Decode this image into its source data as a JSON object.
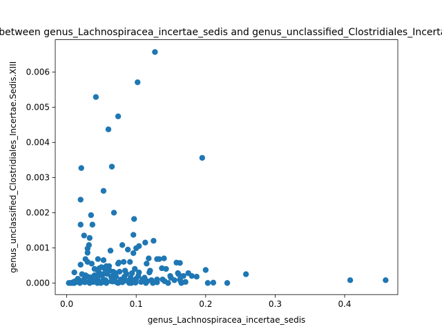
{
  "chart_data": {
    "type": "scatter",
    "title": "Correlation between genus_Lachnospiracea_incertae_sedis and genus_unclassified_Clostridiales_Incertae.Sedis.XIII",
    "xlabel": "genus_Lachnospiracea_incertae_sedis",
    "ylabel": "genus_unclassified_Clostridiales_Incertae.Sedis.XIII",
    "xlim": [
      -0.0165,
      0.4765
    ],
    "ylim": [
      -0.00033,
      0.00692
    ],
    "x_ticks": [
      "0.0",
      "0.1",
      "0.2",
      "0.3",
      "0.4"
    ],
    "x_tick_values": [
      0.0,
      0.1,
      0.2,
      0.3,
      0.4
    ],
    "y_ticks": [
      "0.000",
      "0.001",
      "0.002",
      "0.003",
      "0.004",
      "0.005",
      "0.006"
    ],
    "y_tick_values": [
      0.0,
      0.001,
      0.002,
      0.003,
      0.004,
      0.005,
      0.006
    ],
    "grid": false,
    "marker_color": "#1f77b4",
    "x": [
      0.127,
      0.102,
      0.042,
      0.074,
      0.06,
      0.195,
      0.021,
      0.065,
      0.053,
      0.02,
      0.068,
      0.035,
      0.097,
      0.02,
      0.037,
      0.025,
      0.033,
      0.096,
      0.125,
      0.113,
      0.032,
      0.104,
      0.03,
      0.08,
      0.1,
      0.03,
      0.063,
      0.088,
      0.096,
      0.118,
      0.14,
      0.082,
      0.158,
      0.074,
      0.011,
      0.03,
      0.027,
      0.045,
      0.053,
      0.075,
      0.133,
      0.163,
      0.04,
      0.115,
      0.13,
      0.02,
      0.061,
      0.091,
      0.143,
      0.16,
      0.175,
      0.2,
      0.098,
      0.03,
      0.137,
      0.12,
      0.104,
      0.094,
      0.084,
      0.067,
      0.05,
      0.045,
      0.028,
      0.044,
      0.035,
      0.053,
      0.071,
      0.078,
      0.149,
      0.138,
      0.18,
      0.168,
      0.119,
      0.15,
      0.161,
      0.187,
      0.163,
      0.164,
      0.155,
      0.141,
      0.13,
      0.112,
      0.1,
      0.078,
      0.045,
      0.037,
      0.005,
      0.008,
      0.012,
      0.018,
      0.025,
      0.032,
      0.041,
      0.049,
      0.056,
      0.064,
      0.072,
      0.081,
      0.09,
      0.095,
      0.107,
      0.116,
      0.124,
      0.027,
      0.009,
      0.016,
      0.022,
      0.04,
      0.058,
      0.069,
      0.086,
      0.103,
      0.011,
      0.034,
      0.047,
      0.059,
      0.083,
      0.047,
      0.052,
      0.057,
      0.062,
      0.068,
      0.043,
      0.036,
      0.055,
      0.049,
      0.064,
      0.07,
      0.076,
      0.092,
      0.109,
      0.122,
      0.003,
      0.014,
      0.019,
      0.026,
      0.033,
      0.038,
      0.044,
      0.051,
      0.057,
      0.066,
      0.074,
      0.08,
      0.087,
      0.093,
      0.099,
      0.114,
      0.13,
      0.146,
      0.171,
      0.165,
      0.203,
      0.211,
      0.231,
      0.258,
      0.408,
      0.459
    ],
    "y": [
      0.00657,
      0.00571,
      0.00529,
      0.00474,
      0.00437,
      0.00356,
      0.00327,
      0.00331,
      0.00262,
      0.00237,
      0.002,
      0.00193,
      0.00182,
      0.00166,
      0.00166,
      0.00135,
      0.00128,
      0.00137,
      0.0012,
      0.00115,
      0.00108,
      0.00105,
      0.00098,
      0.00108,
      0.00099,
      0.00086,
      0.00092,
      0.00095,
      0.00085,
      0.0007,
      0.0007,
      0.0006,
      0.00058,
      0.00055,
      0.0003,
      0.0006,
      0.00068,
      0.00068,
      0.00065,
      0.00058,
      0.00068,
      0.00057,
      0.0004,
      0.00055,
      0.00068,
      0.00052,
      0.00048,
      0.0006,
      0.0004,
      0.00028,
      0.00028,
      0.00037,
      0.0004,
      0.00018,
      0.00042,
      0.00035,
      0.0003,
      0.00028,
      0.00035,
      0.00032,
      0.00045,
      0.00035,
      0.0002,
      0.0002,
      0.00012,
      0.0001,
      0.00018,
      0.0001,
      0.0002,
      0.0001,
      0.0002,
      0.0002,
      0.0003,
      0.00015,
      0.00025,
      0.00018,
      0.0001,
      5e-05,
      8e-05,
      5e-05,
      0.0001,
      0.00015,
      0.00012,
      5e-05,
      8e-05,
      0.00015,
      0.0,
      0.0,
      5e-05,
      8e-05,
      0.0001,
      3e-05,
      5e-05,
      0.0,
      8e-05,
      5e-05,
      2e-05,
      4e-05,
      0.0,
      6e-05,
      3e-05,
      5e-05,
      0.0,
      0.00022,
      2e-05,
      0.00012,
      0.00025,
      0.00022,
      0.00026,
      0.00022,
      0.00026,
      0.0002,
      0.0,
      0.00016,
      0.00028,
      0.00032,
      0.00018,
      0.00042,
      0.00025,
      0.00048,
      0.00035,
      0.00012,
      5e-05,
      0.00055,
      0.0004,
      0.00022,
      0.00018,
      0.00028,
      0.00032,
      0.00015,
      0.0001,
      8e-05,
      0.0,
      3e-05,
      0.0,
      2e-05,
      0.0,
      3e-05,
      0.0,
      2e-05,
      0.0,
      4e-05,
      0.0,
      2e-05,
      6e-05,
      0.0,
      1e-05,
      0.0,
      2e-05,
      0.0,
      3e-05,
      0.0,
      0.0,
      1e-05,
      0.0,
      0.00025,
      8e-05,
      8e-05
    ]
  }
}
